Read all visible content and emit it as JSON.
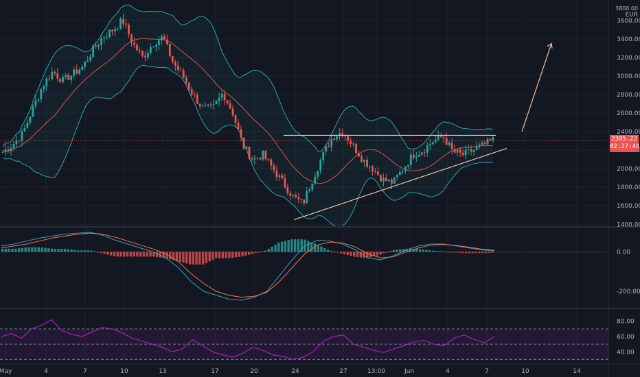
{
  "header": {
    "top_axis_partial": "3800.00",
    "currency": "EUR"
  },
  "last_price": {
    "value": "2305.22",
    "countdown": "02:27:44"
  },
  "colors": {
    "background": "#131722",
    "bull": "#26a69a",
    "bear": "#ef5350",
    "band": "#2aa6a6",
    "ma": "#d9534f",
    "rsi": "#9c27b0",
    "drawing": "#f5c1a6",
    "macd_line": "#2aa6c6",
    "signal_line": "#ff7043"
  },
  "x_axis": {
    "ticks": [
      "May",
      "4",
      "7",
      "10",
      "13",
      "17",
      "20",
      "24",
      "27",
      "13:00",
      "Jun",
      "4",
      "7",
      "10",
      "14"
    ]
  },
  "chart_data": [
    {
      "type": "candlestick",
      "panel": "price",
      "y_ticks": [
        "3600.00",
        "3400.00",
        "3200.00",
        "3000.00",
        "2800.00",
        "2600.00",
        "2400.00",
        "2200.00",
        "2000.00",
        "1800.00",
        "1600.00",
        "1400.00"
      ],
      "ylim": [
        1380,
        3820
      ],
      "close_path": [
        2180,
        2260,
        2380,
        2650,
        2900,
        3050,
        2950,
        3020,
        3100,
        3280,
        3420,
        3500,
        3600,
        3350,
        3200,
        3350,
        3420,
        3150,
        3000,
        2800,
        2650,
        2650,
        2820,
        2600,
        2250,
        2100,
        2150,
        2000,
        1850,
        1700,
        1620,
        1900,
        2150,
        2350,
        2400,
        2250,
        2100,
        2000,
        1880,
        1850,
        2000,
        2150,
        2200,
        2300,
        2350,
        2180,
        2150,
        2200,
        2250,
        2310
      ],
      "overlays": [
        "bollinger-upper",
        "bollinger-middle",
        "bollinger-lower"
      ],
      "annotations": {
        "resistance_line": 2360,
        "support_line_from": [
          1450,
          0.455
        ],
        "support_line_to": [
          2220,
          0.79
        ],
        "projection_arrow": [
          2400,
          3350
        ]
      }
    },
    {
      "type": "macd",
      "panel": "macd",
      "y_ticks": [
        "0.00",
        "-200.00"
      ],
      "ylim": [
        -280,
        120
      ],
      "macd": [
        30,
        40,
        55,
        70,
        80,
        90,
        95,
        100,
        85,
        60,
        40,
        20,
        0,
        -30,
        -80,
        -150,
        -200,
        -220,
        -240,
        -245,
        -230,
        -200,
        -120,
        -40,
        30,
        60,
        55,
        40,
        10,
        -30,
        -40,
        -20,
        10,
        30,
        40,
        40,
        30,
        20,
        10,
        5
      ],
      "signal": [
        20,
        30,
        40,
        55,
        70,
        80,
        90,
        95,
        90,
        75,
        55,
        35,
        15,
        -10,
        -50,
        -110,
        -160,
        -200,
        -220,
        -230,
        -225,
        -205,
        -150,
        -80,
        -10,
        35,
        50,
        45,
        25,
        -10,
        -30,
        -25,
        0,
        20,
        35,
        38,
        32,
        24,
        14,
        8
      ]
    },
    {
      "type": "rsi",
      "panel": "rsi",
      "y_ticks": [
        "80.00",
        "60.00",
        "40.00"
      ],
      "ylim": [
        25,
        95
      ],
      "bands": [
        70,
        50,
        30
      ],
      "values": [
        60,
        64,
        58,
        70,
        75,
        82,
        68,
        63,
        60,
        66,
        72,
        70,
        65,
        58,
        54,
        50,
        46,
        40,
        44,
        56,
        48,
        40,
        36,
        33,
        38,
        46,
        42,
        36,
        34,
        30,
        33,
        40,
        54,
        60,
        62,
        50,
        46,
        42,
        39,
        44,
        48,
        53,
        55,
        50,
        48,
        58,
        62,
        56,
        52,
        60
      ]
    }
  ]
}
